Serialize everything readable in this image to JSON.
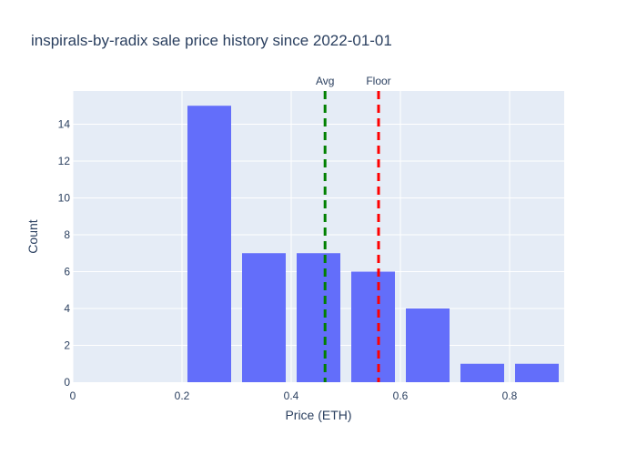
{
  "chart_data": {
    "type": "bar",
    "title": "inspirals-by-radix sale price history since 2022-01-01",
    "xlabel": "Price (ETH)",
    "ylabel": "Count",
    "xlim": [
      0,
      0.9
    ],
    "ylim": [
      0,
      15.8
    ],
    "x_ticks": [
      0,
      0.2,
      0.4,
      0.6,
      0.8
    ],
    "x_tick_labels": [
      "0",
      "0.2",
      "0.4",
      "0.6",
      "0.8"
    ],
    "y_ticks": [
      0,
      2,
      4,
      6,
      8,
      10,
      12,
      14
    ],
    "bin_width": 0.1,
    "bins": [
      {
        "x0": 0.0,
        "x1": 0.1,
        "count": 0
      },
      {
        "x0": 0.1,
        "x1": 0.2,
        "count": 0
      },
      {
        "x0": 0.2,
        "x1": 0.3,
        "count": 15
      },
      {
        "x0": 0.3,
        "x1": 0.4,
        "count": 7
      },
      {
        "x0": 0.4,
        "x1": 0.5,
        "count": 7
      },
      {
        "x0": 0.5,
        "x1": 0.6,
        "count": 6
      },
      {
        "x0": 0.6,
        "x1": 0.7,
        "count": 4
      },
      {
        "x0": 0.7,
        "x1": 0.8,
        "count": 1
      },
      {
        "x0": 0.8,
        "x1": 0.9,
        "count": 1
      }
    ],
    "reference_lines": [
      {
        "label": "Avg",
        "value": 0.462,
        "color": "#008000"
      },
      {
        "label": "Floor",
        "value": 0.56,
        "color": "#ff0000"
      }
    ],
    "bar_color": "#636efa",
    "plot_bg": "#e5ecf6",
    "grid": true
  }
}
